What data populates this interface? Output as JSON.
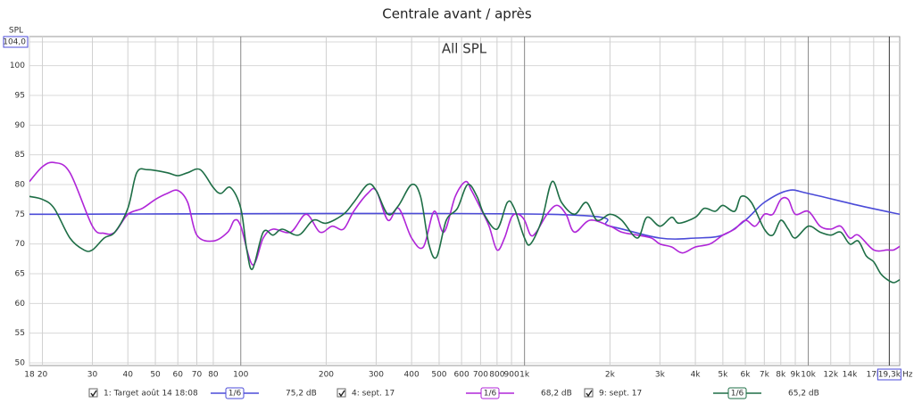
{
  "chart_data": {
    "type": "line",
    "title": "Centrale avant / après",
    "subtitle": "All SPL",
    "y_label": "SPL",
    "x_label": "Hz",
    "xscale": "log",
    "grid": true,
    "xlim": [
      18,
      21000
    ],
    "ylim": [
      50,
      104
    ],
    "yticks": [
      {
        "value": 104,
        "label": "104,0"
      },
      100,
      95,
      90,
      85,
      80,
      75,
      70,
      65,
      60,
      55,
      50
    ],
    "xticks": [
      18,
      20,
      30,
      40,
      50,
      60,
      70,
      80,
      100,
      200,
      300,
      400,
      500,
      600,
      700,
      800,
      900,
      {
        "value": 1000,
        "label": "1k"
      },
      {
        "value": 2000,
        "label": "2k"
      },
      {
        "value": 3000,
        "label": "3k"
      },
      {
        "value": 4000,
        "label": "4k"
      },
      {
        "value": 5000,
        "label": "5k"
      },
      {
        "value": 6000,
        "label": "6k"
      },
      {
        "value": 7000,
        "label": "7k"
      },
      {
        "value": 8000,
        "label": "8k"
      },
      {
        "value": 9000,
        "label": "9k"
      },
      {
        "value": 10000,
        "label": "10k"
      },
      {
        "value": 12000,
        "label": "12k"
      },
      {
        "value": 14000,
        "label": "14k"
      },
      {
        "value": 17000,
        "label": "17k"
      },
      {
        "value": 19300,
        "label": "19,3k"
      }
    ],
    "series": [
      {
        "name": "1: Target août 14 18:08",
        "smoothing": "1/6",
        "legend_value": "75,2 dB",
        "color": "#4b4bd8",
        "x": [
          18,
          1200,
          2000,
          3000,
          4000,
          5000,
          6000,
          7000,
          8500,
          10000,
          15000,
          21000
        ],
        "values": [
          75,
          75,
          73,
          71,
          71,
          71.5,
          74,
          77,
          79,
          78.5,
          76.5,
          75
        ]
      },
      {
        "name": "4: sept. 17",
        "smoothing": "1/6",
        "legend_value": "68,2 dB",
        "color": "#b026d8",
        "x": [
          18,
          20,
          22,
          25,
          30,
          33,
          36,
          40,
          45,
          50,
          55,
          60,
          65,
          70,
          80,
          90,
          95,
          100,
          110,
          120,
          130,
          150,
          170,
          190,
          210,
          230,
          250,
          280,
          300,
          330,
          360,
          400,
          440,
          480,
          520,
          570,
          620,
          650,
          700,
          750,
          800,
          850,
          900,
          950,
          1000,
          1050,
          1100,
          1200,
          1300,
          1400,
          1500,
          1700,
          2000,
          2200,
          2500,
          2800,
          3000,
          3300,
          3600,
          4000,
          4500,
          5000,
          5500,
          6000,
          6500,
          7000,
          7500,
          8000,
          8500,
          9000,
          10000,
          11000,
          12000,
          13000,
          14000,
          15000,
          17000,
          19000,
          20000,
          21000
        ],
        "values": [
          80.5,
          83,
          83.7,
          82,
          73,
          71.8,
          72,
          75,
          76,
          77.5,
          78.5,
          79,
          77,
          71.5,
          70.5,
          72,
          74,
          73,
          66.5,
          71,
          72.5,
          72,
          75,
          72,
          73,
          72.5,
          75.5,
          78.5,
          79,
          74,
          76,
          71,
          69.5,
          75.5,
          72,
          78,
          80.5,
          79,
          76,
          73,
          69,
          71,
          74.5,
          75,
          74,
          71.5,
          72,
          75,
          76.5,
          75,
          72,
          74,
          73,
          72,
          71.5,
          71,
          70,
          69.5,
          68.5,
          69.5,
          70,
          71.5,
          72.5,
          74,
          73,
          75,
          75,
          77.5,
          77.5,
          75,
          75.5,
          73,
          72.5,
          73,
          71,
          71.5,
          69,
          69,
          69,
          69.6
        ]
      },
      {
        "name": "9: sept. 17",
        "smoothing": "1/6",
        "legend_value": "65,2 dB",
        "color": "#1e6e46",
        "x": [
          18,
          20,
          22,
          25,
          28,
          30,
          33,
          36,
          40,
          43,
          47,
          55,
          60,
          65,
          72,
          80,
          85,
          92,
          100,
          105,
          110,
          120,
          130,
          140,
          160,
          180,
          200,
          230,
          250,
          280,
          300,
          330,
          360,
          400,
          430,
          460,
          490,
          530,
          580,
          630,
          680,
          720,
          800,
          870,
          920,
          1000,
          1050,
          1150,
          1250,
          1350,
          1500,
          1650,
          1800,
          2000,
          2200,
          2500,
          2700,
          3000,
          3300,
          3500,
          4000,
          4300,
          4700,
          5000,
          5500,
          5800,
          6300,
          7000,
          7500,
          8000,
          8500,
          9000,
          10000,
          11000,
          12000,
          13000,
          14000,
          15000,
          16000,
          17000,
          18000,
          19000,
          20000,
          21000
        ],
        "values": [
          78,
          77.5,
          76,
          71,
          69,
          69,
          71,
          72,
          76,
          82,
          82.5,
          82,
          81.5,
          82,
          82.5,
          79.5,
          78.5,
          79.5,
          76,
          69,
          65.8,
          72,
          71.5,
          72.5,
          71.5,
          74,
          73.5,
          75,
          77,
          80,
          79,
          75,
          76.5,
          80,
          78,
          70,
          67.8,
          74,
          76,
          80,
          78,
          75,
          72.5,
          77,
          76,
          71,
          70,
          74,
          80.5,
          77,
          75,
          77,
          74,
          75,
          74,
          71,
          74.5,
          73,
          74.5,
          73.5,
          74.5,
          76,
          75.5,
          76.5,
          75.5,
          78,
          77,
          72.5,
          71.5,
          74,
          72.5,
          71,
          73,
          72,
          71.5,
          72,
          70,
          70.5,
          68,
          67,
          65,
          64,
          63.5,
          64
        ]
      }
    ]
  }
}
